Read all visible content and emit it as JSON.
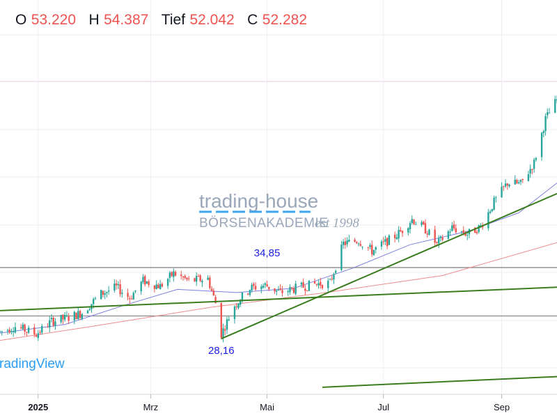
{
  "header": {
    "open_label": "O",
    "open_value": "53.220",
    "high_label": "H",
    "high_value": "54.387",
    "low_label": "Tief",
    "low_value": "52.042",
    "close_label": "C",
    "close_value": "52.282"
  },
  "watermark": {
    "line1": "trading-house",
    "line2": "BÖRSENAKADEMIE",
    "est": "est 1998"
  },
  "branding": {
    "text": "radingView"
  },
  "colors": {
    "up": "#26a69a",
    "down": "#ef5350",
    "trendline": "#3a7d1e",
    "ma_fast": "#7b7fe0",
    "ma_slow": "#f08a8a",
    "level": "#888888",
    "annotation": "#1a1ae6"
  },
  "chart_data": {
    "type": "candlestick",
    "x_ticks": [
      {
        "label": "2025",
        "date": "2025-01-01"
      },
      {
        "label": "Mrz",
        "date": "2025-03-01"
      },
      {
        "label": "Mai",
        "date": "2025-05-01"
      },
      {
        "label": "Jul",
        "date": "2025-07-01"
      },
      {
        "label": "Sep",
        "date": "2025-09-01"
      }
    ],
    "x_range": [
      "2024-12-12",
      "2025-09-30"
    ],
    "y_range": [
      23.0,
      60.0
    ],
    "annotations": [
      {
        "text": "34,85",
        "date": "2025-05-01",
        "value": 34.85
      },
      {
        "text": "28,16",
        "date": "2025-04-07",
        "value": 28.16
      }
    ],
    "horizontal_levels": [
      34.85,
      30.3
    ],
    "anchors": [
      [
        "2024-12-12",
        28.8
      ],
      [
        "2024-12-20",
        29.3
      ],
      [
        "2024-12-31",
        28.6
      ],
      [
        "2025-01-08",
        29.8
      ],
      [
        "2025-01-16",
        30.1
      ],
      [
        "2025-01-24",
        30.6
      ],
      [
        "2025-02-03",
        32.4
      ],
      [
        "2025-02-11",
        33.0
      ],
      [
        "2025-02-18",
        32.0
      ],
      [
        "2025-02-25",
        33.6
      ],
      [
        "2025-03-06",
        33.1
      ],
      [
        "2025-03-13",
        34.3
      ],
      [
        "2025-03-21",
        33.6
      ],
      [
        "2025-03-31",
        33.8
      ],
      [
        "2025-04-04",
        31.5
      ],
      [
        "2025-04-07",
        28.6
      ],
      [
        "2025-04-14",
        31.3
      ],
      [
        "2025-04-22",
        32.9
      ],
      [
        "2025-04-30",
        33.2
      ],
      [
        "2025-05-08",
        32.5
      ],
      [
        "2025-05-16",
        32.9
      ],
      [
        "2025-05-26",
        33.3
      ],
      [
        "2025-06-03",
        33.4
      ],
      [
        "2025-06-10",
        37.1
      ],
      [
        "2025-06-18",
        37.4
      ],
      [
        "2025-06-25",
        36.4
      ],
      [
        "2025-07-03",
        37.3
      ],
      [
        "2025-07-10",
        38.2
      ],
      [
        "2025-07-16",
        39.4
      ],
      [
        "2025-07-24",
        38.3
      ],
      [
        "2025-07-29",
        37.0
      ],
      [
        "2025-08-06",
        38.6
      ],
      [
        "2025-08-14",
        38.0
      ],
      [
        "2025-08-21",
        38.7
      ],
      [
        "2025-08-28",
        41.0
      ],
      [
        "2025-09-04",
        42.8
      ],
      [
        "2025-09-11",
        42.7
      ],
      [
        "2025-09-18",
        44.7
      ],
      [
        "2025-09-24",
        48.8
      ],
      [
        "2025-09-30",
        50.6
      ]
    ],
    "ma_fast": [
      [
        "2024-12-12",
        28.7
      ],
      [
        "2025-01-15",
        29.5
      ],
      [
        "2025-02-15",
        31.3
      ],
      [
        "2025-03-15",
        32.8
      ],
      [
        "2025-04-15",
        32.5
      ],
      [
        "2025-05-15",
        32.9
      ],
      [
        "2025-06-15",
        34.8
      ],
      [
        "2025-07-15",
        37.0
      ],
      [
        "2025-08-15",
        38.3
      ],
      [
        "2025-09-10",
        40.0
      ],
      [
        "2025-09-30",
        42.8
      ]
    ],
    "ma_slow": [
      [
        "2024-12-12",
        28.0
      ],
      [
        "2025-02-01",
        29.4
      ],
      [
        "2025-04-01",
        31.1
      ],
      [
        "2025-06-01",
        32.5
      ],
      [
        "2025-08-01",
        34.1
      ],
      [
        "2025-09-30",
        37.2
      ]
    ],
    "trendlines": [
      {
        "from": [
          "2024-12-12",
          30.8
        ],
        "to": [
          "2025-09-30",
          33.0
        ]
      },
      {
        "from": [
          "2025-04-07",
          28.16
        ],
        "to": [
          "2025-09-30",
          41.8
        ]
      },
      {
        "from": [
          "2025-05-30",
          23.6
        ],
        "to": [
          "2025-09-30",
          24.6
        ]
      }
    ]
  }
}
